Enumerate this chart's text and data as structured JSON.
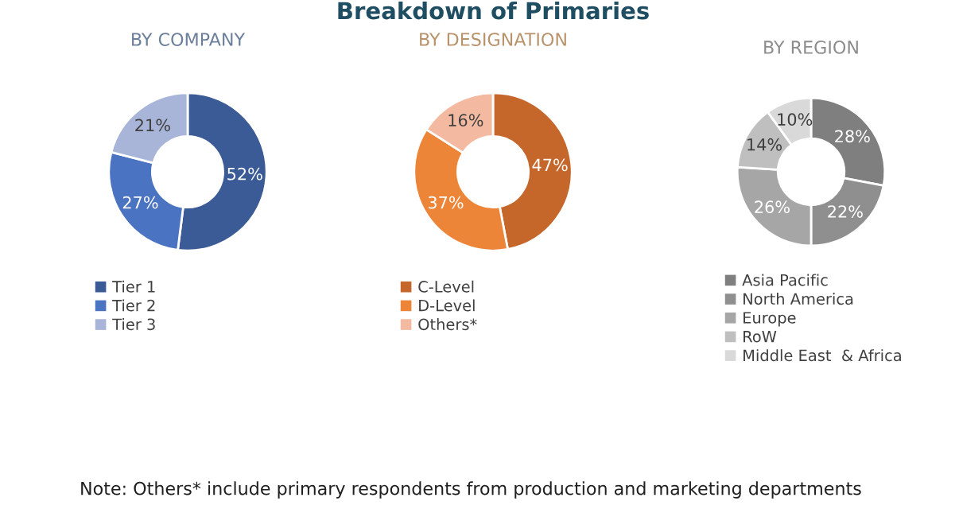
{
  "chart_data": [
    {
      "type": "donut",
      "subtitle": "BY COMPANY",
      "categories": [
        "Tier 1",
        "Tier 2",
        "Tier 3"
      ],
      "values": [
        52,
        27,
        21
      ],
      "value_labels": [
        "52%",
        "27%",
        "21%"
      ],
      "colors": [
        "#3b5b96",
        "#4a73c1",
        "#a8b5d9"
      ],
      "legend": "bottom",
      "annotations": [
        "Note: Others* include primary respondents from production and marketing departments"
      ]
    },
    {
      "type": "donut",
      "title": "Breakdown of Primaries",
      "subtitle": "BY DESIGNATION",
      "categories": [
        "C-Level",
        "D-Level",
        "Others*"
      ],
      "values": [
        47,
        37,
        16
      ],
      "value_labels": [
        "47%",
        "37%",
        "16%"
      ],
      "colors": [
        "#c5662b",
        "#ed8538",
        "#f4baa1"
      ],
      "legend": "bottom"
    },
    {
      "type": "donut",
      "subtitle": "BY REGION",
      "categories": [
        "Asia Pacific",
        "North America",
        "Europe",
        "RoW",
        "Middle East  & Africa"
      ],
      "values": [
        28,
        22,
        26,
        14,
        10
      ],
      "value_labels": [
        "28%",
        "22%",
        "26%",
        "14%",
        "10%"
      ],
      "colors": [
        "#7f7f7f",
        "#8f8f8f",
        "#a6a6a6",
        "#bfbfbf",
        "#d9d9d9"
      ],
      "legend": "bottom"
    }
  ]
}
